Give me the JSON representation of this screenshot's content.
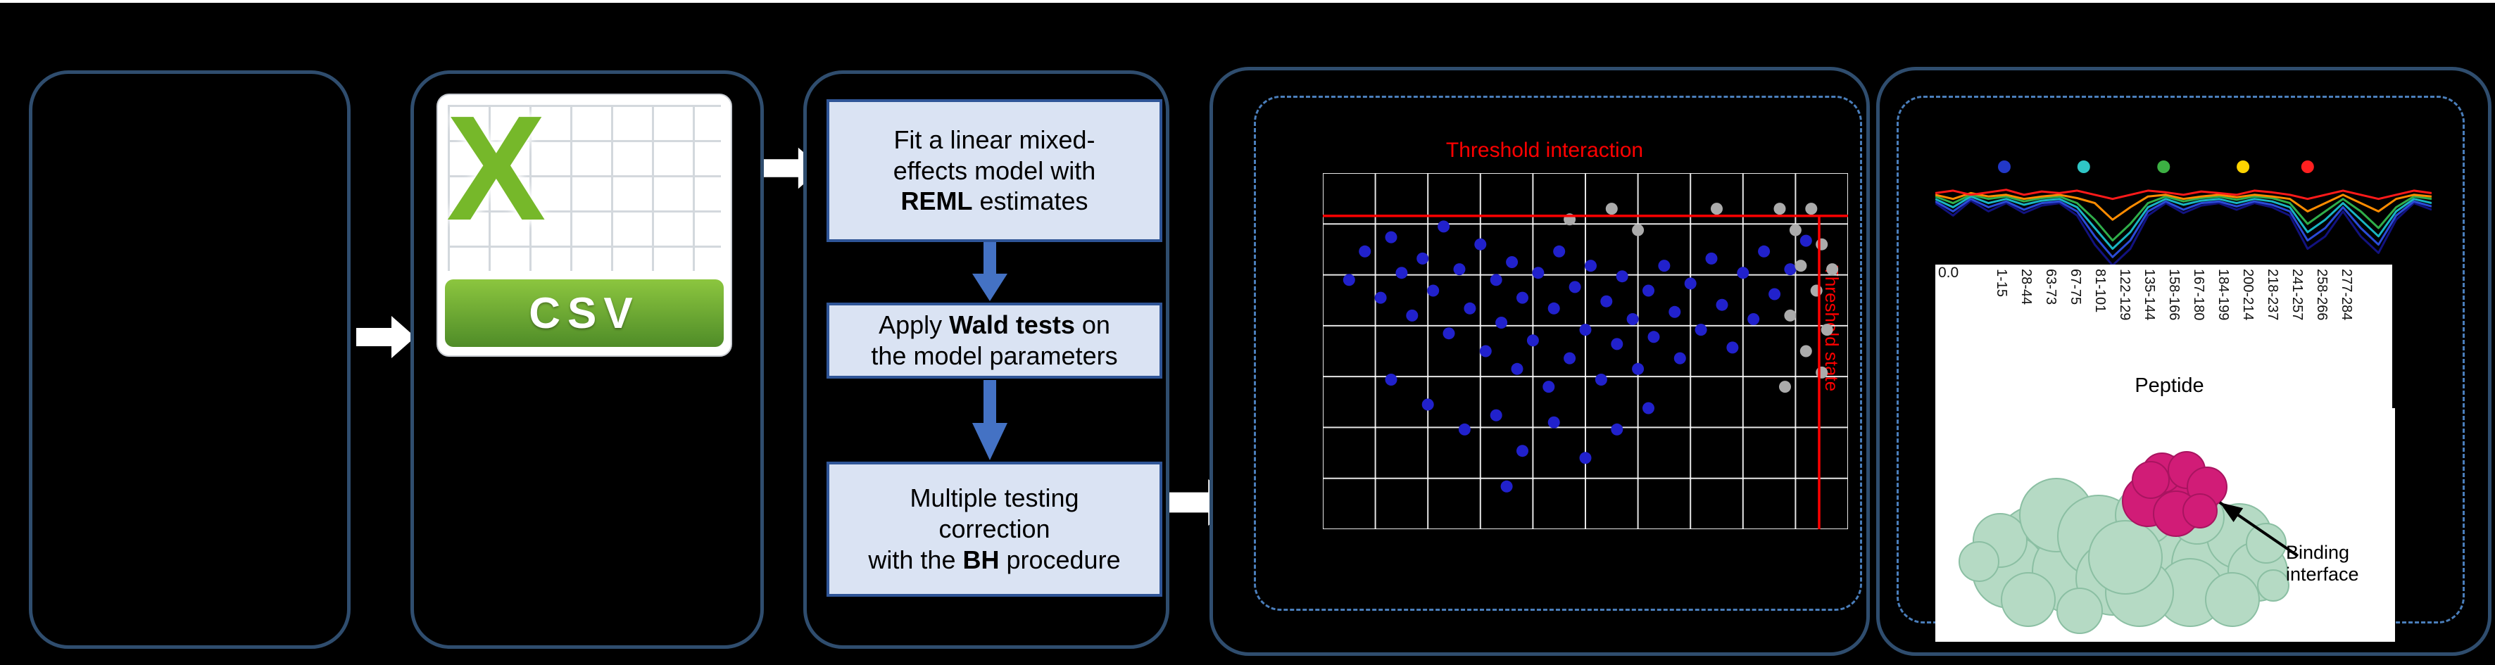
{
  "colors": {
    "background": "#000000",
    "panel_border": "#2f4d6e",
    "dashed_border": "#4a7ebb",
    "step_fill": "#dae3f3",
    "step_border": "#2f5597",
    "arrow_white": "#ffffff",
    "arrow_blue": "#4472c4",
    "threshold_red": "#ff0000",
    "dot_blue": "#2121cc",
    "dot_gray": "#ababab",
    "grid_line": "#ffffff",
    "csv_green": "#76b82a",
    "protein_green": "#b5dac4",
    "protein_magenta": "#d11c77"
  },
  "csv_icon": {
    "letter": "X",
    "label": "CSV"
  },
  "steps": [
    {
      "before": "Fit a linear mixed-\neffects model with\n",
      "bold": "REML",
      "after": " estimates"
    },
    {
      "before": "Apply ",
      "bold": "Wald tests",
      "after": " on\nthe model parameters"
    },
    {
      "before": "Multiple testing\ncorrection\nwith the ",
      "bold": "BH",
      "after": " procedure"
    }
  ],
  "chart_data": [
    {
      "type": "scatter",
      "title": "Threshold interaction",
      "side_label": "Threshold state",
      "grid": {
        "cols": 10,
        "rows": 7
      },
      "threshold_y": 0.12,
      "threshold_x": 0.945,
      "points_blue": [
        [
          0.05,
          0.3
        ],
        [
          0.08,
          0.22
        ],
        [
          0.11,
          0.35
        ],
        [
          0.13,
          0.18
        ],
        [
          0.15,
          0.28
        ],
        [
          0.17,
          0.4
        ],
        [
          0.19,
          0.24
        ],
        [
          0.21,
          0.33
        ],
        [
          0.23,
          0.15
        ],
        [
          0.24,
          0.45
        ],
        [
          0.26,
          0.27
        ],
        [
          0.28,
          0.38
        ],
        [
          0.3,
          0.2
        ],
        [
          0.31,
          0.5
        ],
        [
          0.33,
          0.3
        ],
        [
          0.34,
          0.42
        ],
        [
          0.36,
          0.25
        ],
        [
          0.37,
          0.55
        ],
        [
          0.38,
          0.35
        ],
        [
          0.4,
          0.47
        ],
        [
          0.41,
          0.28
        ],
        [
          0.43,
          0.6
        ],
        [
          0.44,
          0.38
        ],
        [
          0.45,
          0.22
        ],
        [
          0.47,
          0.52
        ],
        [
          0.48,
          0.32
        ],
        [
          0.5,
          0.44
        ],
        [
          0.51,
          0.26
        ],
        [
          0.53,
          0.58
        ],
        [
          0.54,
          0.36
        ],
        [
          0.56,
          0.48
        ],
        [
          0.57,
          0.29
        ],
        [
          0.59,
          0.41
        ],
        [
          0.6,
          0.55
        ],
        [
          0.62,
          0.33
        ],
        [
          0.63,
          0.46
        ],
        [
          0.65,
          0.26
        ],
        [
          0.67,
          0.39
        ],
        [
          0.68,
          0.52
        ],
        [
          0.7,
          0.31
        ],
        [
          0.72,
          0.44
        ],
        [
          0.74,
          0.24
        ],
        [
          0.76,
          0.37
        ],
        [
          0.78,
          0.49
        ],
        [
          0.8,
          0.28
        ],
        [
          0.82,
          0.41
        ],
        [
          0.84,
          0.22
        ],
        [
          0.86,
          0.34
        ],
        [
          0.89,
          0.27
        ],
        [
          0.92,
          0.19
        ],
        [
          0.2,
          0.65
        ],
        [
          0.27,
          0.72
        ],
        [
          0.33,
          0.68
        ],
        [
          0.38,
          0.78
        ],
        [
          0.44,
          0.7
        ],
        [
          0.5,
          0.8
        ],
        [
          0.56,
          0.72
        ],
        [
          0.13,
          0.58
        ],
        [
          0.62,
          0.66
        ],
        [
          0.35,
          0.88
        ]
      ],
      "points_gray": [
        [
          0.87,
          0.1
        ],
        [
          0.9,
          0.16
        ],
        [
          0.93,
          0.1
        ],
        [
          0.95,
          0.2
        ],
        [
          0.91,
          0.26
        ],
        [
          0.94,
          0.33
        ],
        [
          0.96,
          0.44
        ],
        [
          0.92,
          0.5
        ],
        [
          0.89,
          0.4
        ],
        [
          0.95,
          0.56
        ],
        [
          0.88,
          0.6
        ],
        [
          0.97,
          0.27
        ],
        [
          0.55,
          0.1
        ],
        [
          0.6,
          0.16
        ],
        [
          0.47,
          0.13
        ],
        [
          0.75,
          0.1
        ]
      ]
    },
    {
      "type": "line",
      "y_tick": "0.0",
      "dots": [
        {
          "color": "#2238c8",
          "x": 0.139
        },
        {
          "color": "#2fc5c5",
          "x": 0.299
        },
        {
          "color": "#3cb043",
          "x": 0.46
        },
        {
          "color": "#ffd400",
          "x": 0.62
        },
        {
          "color": "#ff2020",
          "x": 0.75
        }
      ],
      "series": [
        {
          "name": "navy",
          "color": "#12127f",
          "values": [
            0.8,
            0.65,
            0.83,
            0.7,
            0.8,
            0.68,
            0.77,
            0.8,
            0.65,
            0.3,
            0.05,
            0.25,
            0.65,
            0.8,
            0.68,
            0.77,
            0.8,
            0.72,
            0.8,
            0.75,
            0.65,
            0.25,
            0.4,
            0.7,
            0.4,
            0.2,
            0.6,
            0.8,
            0.72
          ]
        },
        {
          "name": "blue",
          "color": "#2a4bd7",
          "values": [
            0.82,
            0.7,
            0.85,
            0.75,
            0.82,
            0.72,
            0.8,
            0.82,
            0.7,
            0.4,
            0.15,
            0.35,
            0.7,
            0.82,
            0.72,
            0.8,
            0.82,
            0.76,
            0.82,
            0.78,
            0.7,
            0.35,
            0.5,
            0.75,
            0.5,
            0.3,
            0.65,
            0.82,
            0.76
          ]
        },
        {
          "name": "cyan",
          "color": "#19b5c2",
          "values": [
            0.85,
            0.75,
            0.88,
            0.8,
            0.85,
            0.78,
            0.83,
            0.85,
            0.75,
            0.5,
            0.25,
            0.45,
            0.75,
            0.85,
            0.78,
            0.83,
            0.85,
            0.8,
            0.85,
            0.82,
            0.75,
            0.45,
            0.6,
            0.8,
            0.6,
            0.4,
            0.7,
            0.85,
            0.8
          ]
        },
        {
          "name": "green",
          "color": "#2fae4a",
          "values": [
            0.88,
            0.8,
            0.9,
            0.85,
            0.88,
            0.82,
            0.86,
            0.88,
            0.8,
            0.6,
            0.35,
            0.55,
            0.8,
            0.88,
            0.82,
            0.86,
            0.88,
            0.84,
            0.88,
            0.86,
            0.8,
            0.55,
            0.7,
            0.85,
            0.7,
            0.5,
            0.75,
            0.88,
            0.85
          ]
        },
        {
          "name": "orange",
          "color": "#ff8c00",
          "values": [
            0.9,
            0.85,
            0.92,
            0.88,
            0.9,
            0.85,
            0.88,
            0.9,
            0.86,
            0.8,
            0.6,
            0.75,
            0.88,
            0.9,
            0.85,
            0.88,
            0.9,
            0.87,
            0.9,
            0.88,
            0.85,
            0.7,
            0.8,
            0.9,
            0.8,
            0.7,
            0.85,
            0.9,
            0.88
          ]
        },
        {
          "name": "red",
          "color": "#ff1a1a",
          "values": [
            0.92,
            0.95,
            0.9,
            0.93,
            0.96,
            0.9,
            0.94,
            0.92,
            0.95,
            0.9,
            0.85,
            0.9,
            0.95,
            0.93,
            0.9,
            0.94,
            0.92,
            0.9,
            0.95,
            0.93,
            0.9,
            0.85,
            0.9,
            0.95,
            0.9,
            0.85,
            0.9,
            0.95,
            0.92
          ]
        }
      ]
    }
  ],
  "peptide_axis": {
    "labels": [
      "1-15",
      "28-44",
      "63-73",
      "67-75",
      "81-101",
      "122-129",
      "135-144",
      "158-166",
      "167-180",
      "184-199",
      "200-214",
      "218-237",
      "241-257",
      "258-266",
      "277-284"
    ],
    "title": "Peptide"
  },
  "protein": {
    "annotation": "Binding interface"
  }
}
